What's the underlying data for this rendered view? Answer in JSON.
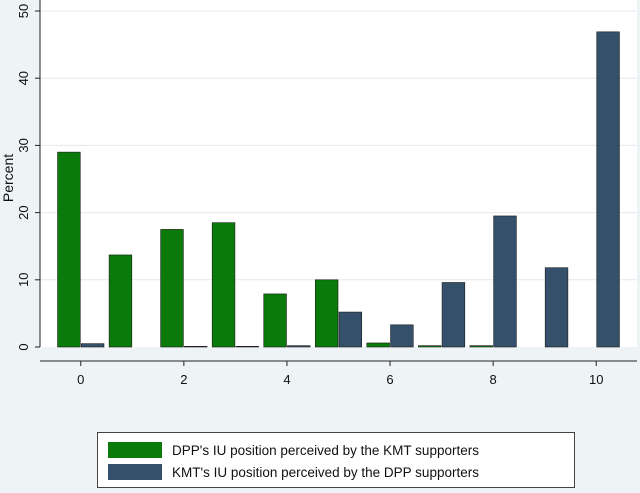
{
  "chart_data": {
    "type": "bar",
    "x": [
      0,
      1,
      2,
      3,
      4,
      5,
      6,
      7,
      8,
      9,
      10
    ],
    "series": [
      {
        "name": "DPP's IU position perceived by the KMT supporters",
        "color": "#0a7a0a",
        "values": [
          29,
          13.7,
          17.5,
          18.5,
          7.9,
          10,
          0.6,
          0.2,
          0.2,
          0,
          0
        ]
      },
      {
        "name": "KMT's IU position perceived by the DPP supporters",
        "color": "#34506b",
        "values": [
          0.5,
          0,
          0.1,
          0.1,
          0.2,
          5.2,
          3.3,
          9.6,
          19.5,
          11.8,
          46.9
        ]
      }
    ],
    "xticks": [
      0,
      2,
      4,
      6,
      8,
      10
    ],
    "yticks": [
      0,
      10,
      20,
      30,
      40,
      50
    ],
    "xlim": [
      -0.5,
      10.5
    ],
    "ylim": [
      0,
      50
    ],
    "ylabel": "Percent",
    "xlabel": "",
    "title": "",
    "grid": true,
    "legend_position": "bottom"
  }
}
